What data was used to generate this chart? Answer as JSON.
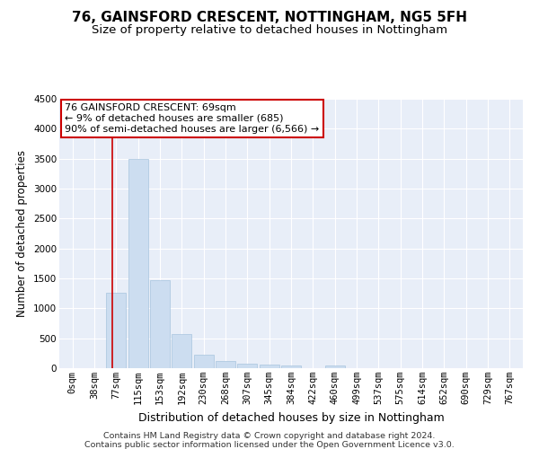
{
  "title1": "76, GAINSFORD CRESCENT, NOTTINGHAM, NG5 5FH",
  "title2": "Size of property relative to detached houses in Nottingham",
  "xlabel": "Distribution of detached houses by size in Nottingham",
  "ylabel": "Number of detached properties",
  "categories": [
    "0sqm",
    "38sqm",
    "77sqm",
    "115sqm",
    "153sqm",
    "192sqm",
    "230sqm",
    "268sqm",
    "307sqm",
    "345sqm",
    "384sqm",
    "422sqm",
    "460sqm",
    "499sqm",
    "537sqm",
    "575sqm",
    "614sqm",
    "652sqm",
    "690sqm",
    "729sqm",
    "767sqm"
  ],
  "values": [
    2,
    5,
    1255,
    3500,
    1475,
    575,
    220,
    115,
    80,
    55,
    40,
    0,
    50,
    0,
    0,
    0,
    0,
    0,
    0,
    0,
    0
  ],
  "bar_color": "#ccddf0",
  "bar_edge_color": "#a8c4de",
  "vline_x_index": 1.82,
  "vline_color": "#cc0000",
  "annotation_text": "76 GAINSFORD CRESCENT: 69sqm\n← 9% of detached houses are smaller (685)\n90% of semi-detached houses are larger (6,566) →",
  "annotation_box_facecolor": "#ffffff",
  "annotation_box_edgecolor": "#cc0000",
  "ylim": [
    0,
    4500
  ],
  "yticks": [
    0,
    500,
    1000,
    1500,
    2000,
    2500,
    3000,
    3500,
    4000,
    4500
  ],
  "footer1": "Contains HM Land Registry data © Crown copyright and database right 2024.",
  "footer2": "Contains public sector information licensed under the Open Government Licence v3.0.",
  "plot_bg_color": "#e8eef8",
  "grid_color": "#ffffff",
  "title1_fontsize": 11,
  "title2_fontsize": 9.5,
  "xlabel_fontsize": 9,
  "ylabel_fontsize": 8.5,
  "tick_fontsize": 7.5,
  "annot_fontsize": 8,
  "footer_fontsize": 6.8
}
